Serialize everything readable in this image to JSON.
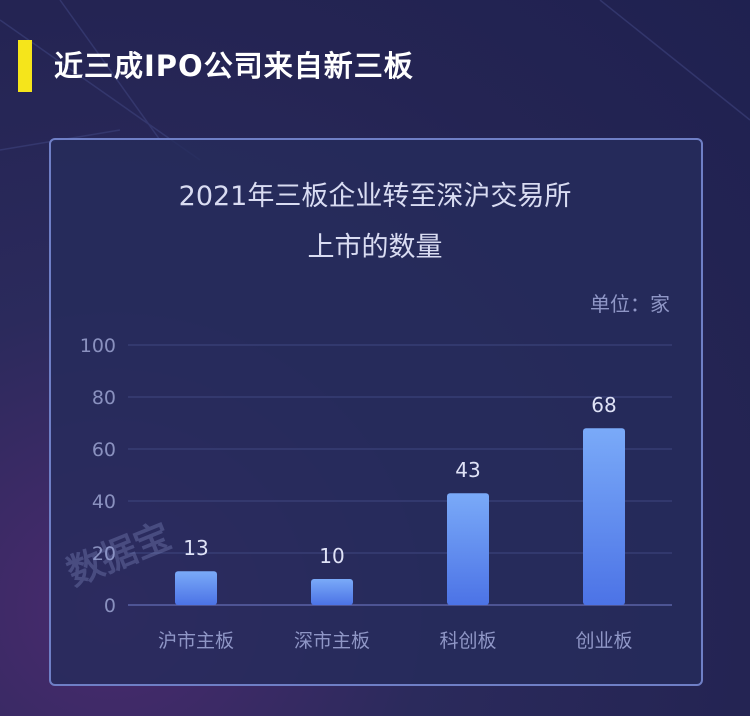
{
  "header": {
    "title": "近三成IPO公司来自新三板"
  },
  "panel": {
    "title_line1": "2021年三板企业转至深沪交易所",
    "title_line2": "上市的数量",
    "unit": "单位：家",
    "watermark": "数据宝"
  },
  "colors": {
    "accent": "#f5e51b",
    "bar_top": "#7aaaf8",
    "bar_bottom": "#4c73e6",
    "grid": "#3f4780"
  },
  "chart_data": {
    "type": "bar",
    "title": "2021年三板企业转至深沪交易所上市的数量",
    "ylabel": "单位：家",
    "categories": [
      "沪市主板",
      "深市主板",
      "科创板",
      "创业板"
    ],
    "values": [
      13,
      10,
      43,
      68
    ],
    "ylim": [
      0,
      100
    ],
    "yticks": [
      0,
      20,
      40,
      60,
      80,
      100
    ],
    "grid": true
  }
}
